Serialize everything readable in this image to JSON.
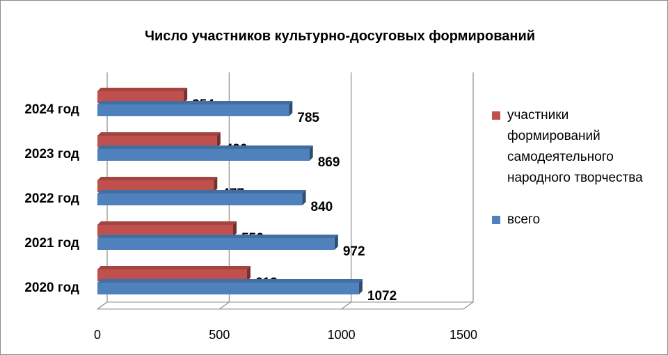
{
  "chart_data": {
    "type": "bar",
    "orientation": "horizontal",
    "title": "Число участников культурно-досуговых формирований",
    "categories": [
      "2024 год",
      "2023 год",
      "2022 год",
      "2021 год",
      "2020 год"
    ],
    "series": [
      {
        "name": "участники формирований самодеятельного народного творчества",
        "color": "#c0504d",
        "values": [
          354,
          490,
          477,
          556,
          613
        ]
      },
      {
        "name": "всего",
        "color": "#4f81bd",
        "values": [
          785,
          869,
          840,
          972,
          1072
        ]
      }
    ],
    "xlim": [
      0,
      1500
    ],
    "xticks": [
      "0",
      "500",
      "1000",
      "1500"
    ],
    "grid": true,
    "legend_position": "right"
  },
  "legend": {
    "items": [
      {
        "lines": [
          "участники",
          "формирований",
          "самодеятельного",
          "народного творчества"
        ],
        "color": "#c0504d"
      },
      {
        "lines": [
          "всего"
        ],
        "color": "#4f81bd"
      }
    ]
  }
}
